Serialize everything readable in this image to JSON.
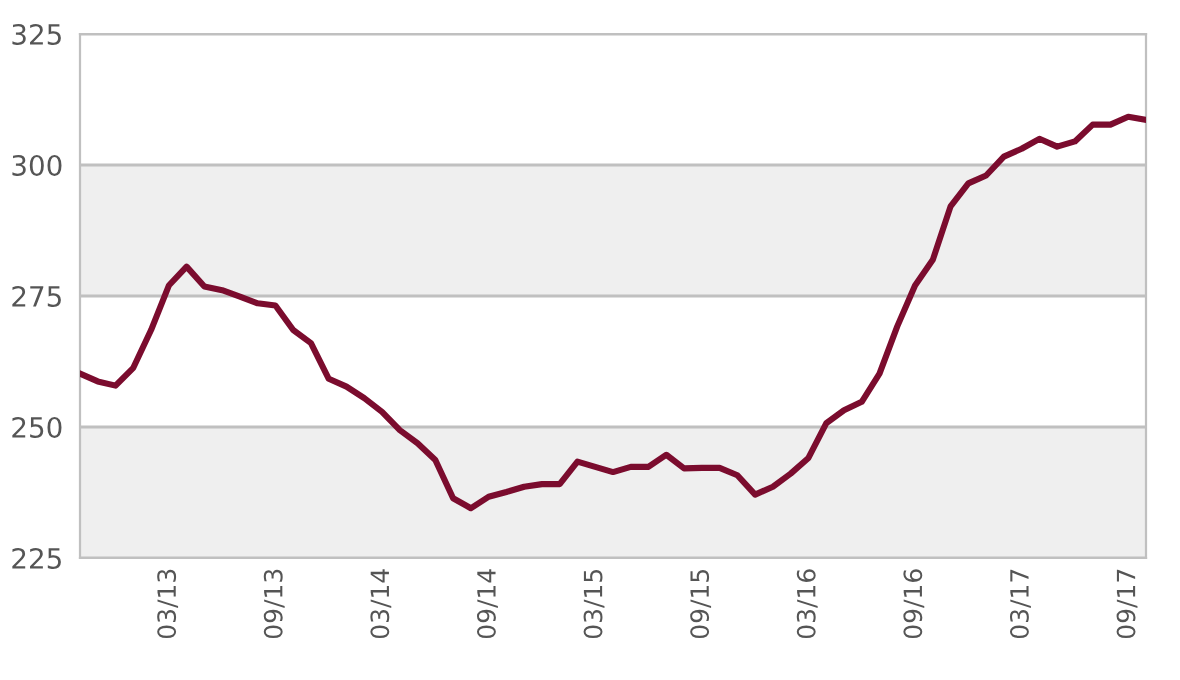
{
  "chart_data": {
    "type": "line",
    "categories": [
      null,
      null,
      null,
      null,
      null,
      "03/13",
      null,
      null,
      null,
      null,
      null,
      "09/13",
      null,
      null,
      null,
      null,
      null,
      "03/14",
      null,
      null,
      null,
      null,
      null,
      "09/14",
      null,
      null,
      null,
      null,
      null,
      "03/15",
      null,
      null,
      null,
      null,
      null,
      "09/15",
      null,
      null,
      null,
      null,
      null,
      "03/16",
      null,
      null,
      null,
      null,
      null,
      "09/16",
      null,
      null,
      null,
      null,
      null,
      "03/17",
      null,
      null,
      null,
      null,
      null,
      "09/17",
      null
    ],
    "series": [
      {
        "color": "#7b0c2e",
        "values": [
          260.2,
          258.7,
          257.9,
          261.3,
          268.5,
          277.0,
          280.6,
          276.8,
          276.1,
          274.9,
          273.6,
          273.2,
          268.5,
          266.0,
          259.2,
          257.7,
          255.5,
          252.9,
          249.4,
          246.9,
          243.7,
          236.4,
          234.5,
          236.7,
          237.6,
          238.6,
          239.1,
          239.1,
          243.4,
          242.4,
          241.4,
          242.4,
          242.4,
          244.7,
          242.1,
          242.2,
          242.2,
          240.8,
          237.1,
          238.6,
          241.1,
          244.1,
          250.7,
          253.2,
          254.8,
          260.2,
          269.2,
          277.0,
          281.9,
          292.1,
          296.5,
          298.0,
          301.6,
          303.1,
          305.0,
          303.5,
          304.5,
          307.7,
          307.7,
          309.2,
          308.6
        ]
      }
    ],
    "ylim": [
      225,
      325
    ],
    "yticks": [
      225,
      250,
      275,
      300,
      325
    ],
    "grid": "y",
    "legend": false,
    "marker": "none",
    "line_style": "solid",
    "bands": [
      {
        "axis": "y",
        "from": 225,
        "to": 250,
        "color": "#efefef"
      },
      {
        "axis": "y",
        "from": 275,
        "to": 300,
        "color": "#efefef"
      }
    ]
  }
}
